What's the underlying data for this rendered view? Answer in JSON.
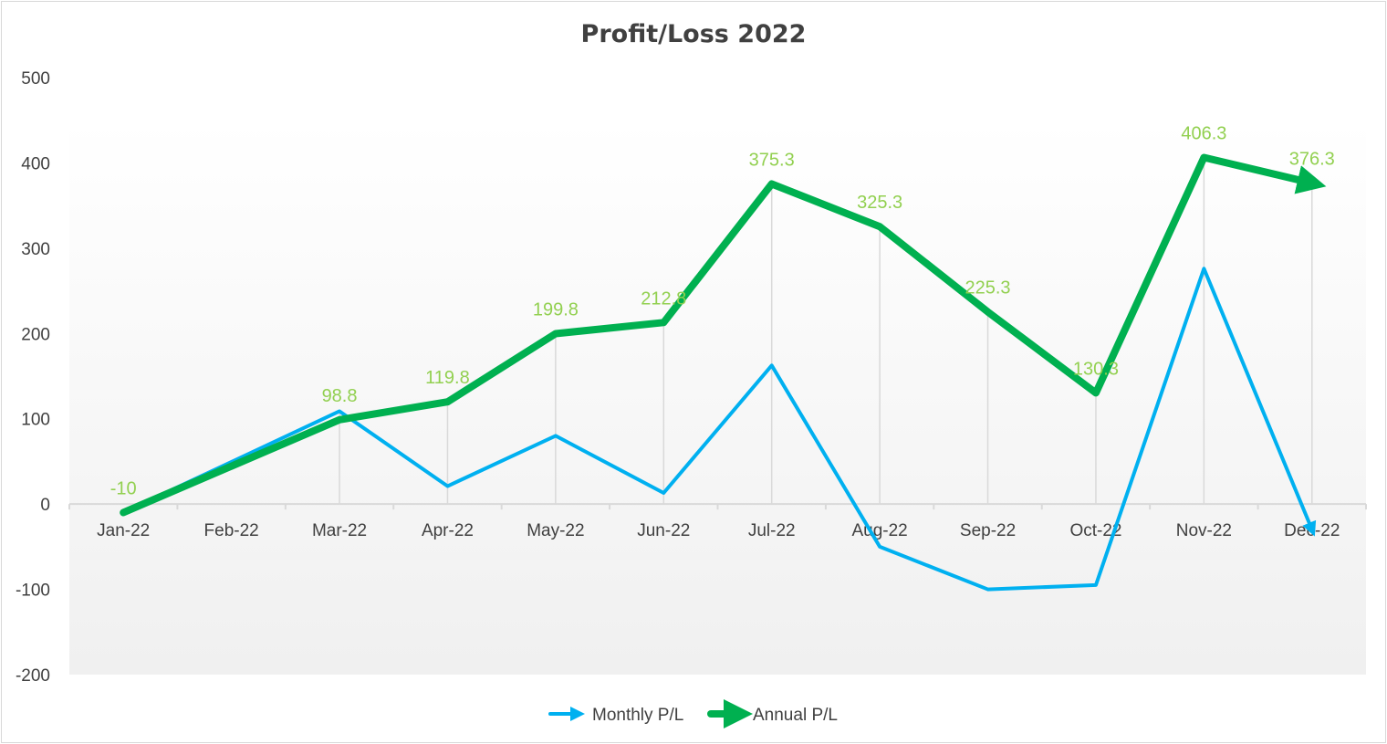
{
  "chart_data": {
    "type": "line",
    "title": "Profit/Loss 2022",
    "xlabel": "",
    "ylabel": "",
    "categories": [
      "Jan-22",
      "Feb-22",
      "Mar-22",
      "Apr-22",
      "May-22",
      "Jun-22",
      "Jul-22",
      "Aug-22",
      "Sep-22",
      "Oct-22",
      "Nov-22",
      "Dec-22"
    ],
    "ylim": [
      -200,
      500
    ],
    "yticks": [
      -200,
      -100,
      0,
      100,
      200,
      300,
      400,
      500
    ],
    "legend_position": "bottom",
    "series": [
      {
        "name": "Monthly P/L",
        "color": "#00b0f0",
        "values": [
          -10,
          null,
          108.8,
          21,
          80,
          13,
          162.5,
          -50,
          -100,
          -95,
          276,
          -30
        ],
        "data_labels": false
      },
      {
        "name": "Annual P/L",
        "color": "#00b050",
        "values": [
          -10,
          null,
          98.8,
          119.8,
          199.8,
          212.8,
          375.3,
          325.3,
          225.3,
          130.3,
          406.3,
          376.3
        ],
        "data_labels": true,
        "label_color": "#92d050"
      }
    ]
  }
}
